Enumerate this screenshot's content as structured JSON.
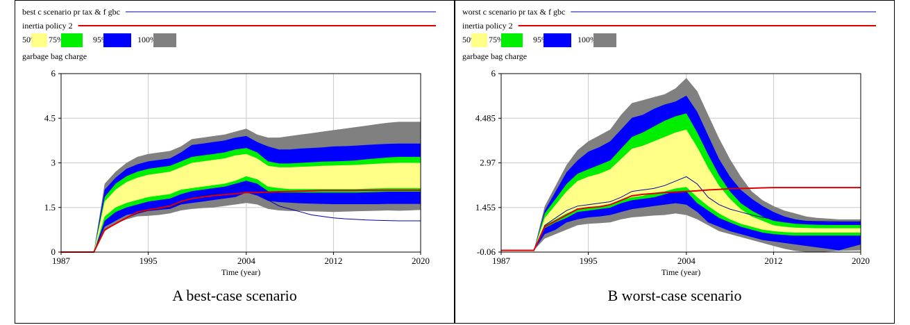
{
  "panels": [
    {
      "caption": "A best-case scenario",
      "legend": {
        "line1": "best c scenario pr tax & f gbc",
        "line2": "inertia policy 2",
        "bands": [
          "50%",
          "75%",
          "95%",
          "100%"
        ]
      },
      "variable": "garbage bag charge",
      "xlabel": "Time (year)"
    },
    {
      "caption": "B worst-case scenario",
      "legend": {
        "line1": "worst c scenario pr tax & f gbc",
        "line2": "inertia policy 2",
        "bands": [
          "50%",
          "75%",
          "95%",
          "100%"
        ]
      },
      "variable": "garbage bag charge",
      "xlabel": "Time (year)"
    }
  ],
  "colors": {
    "band50": "#ffff88",
    "band75": "#00ee00",
    "band95": "#0000ff",
    "band100": "#808080",
    "scenario": "#0000aa",
    "policy": "#dd0000",
    "grid": "#c8c8c8"
  },
  "chart_data": [
    {
      "type": "area",
      "title": "garbage bag charge",
      "xlabel": "Time (year)",
      "ylabel": "",
      "xlim": [
        1987,
        2020
      ],
      "ylim": [
        0,
        6
      ],
      "xticks": [
        "1987",
        "1995",
        "2004",
        "2012",
        "2020"
      ],
      "yticks": [
        "0",
        "1.5",
        "3",
        "4.5",
        "6"
      ],
      "grid": true,
      "legend_position": "top",
      "x": [
        1987,
        1990,
        1991,
        1992,
        1993,
        1994,
        1995,
        1996,
        1997,
        1998,
        1999,
        2000,
        2001,
        2002,
        2003,
        2004,
        2005,
        2006,
        2007,
        2008,
        2009,
        2010,
        2011,
        2012,
        2013,
        2014,
        2015,
        2016,
        2017,
        2018,
        2019,
        2020
      ],
      "bands": [
        {
          "name": "100%",
          "lower": [
            0,
            0,
            0.7,
            0.95,
            1.1,
            1.2,
            1.22,
            1.25,
            1.3,
            1.4,
            1.45,
            1.48,
            1.5,
            1.55,
            1.6,
            1.65,
            1.6,
            1.45,
            1.4,
            1.38,
            1.38,
            1.37,
            1.36,
            1.35,
            1.36,
            1.37,
            1.38,
            1.39,
            1.4,
            1.39,
            1.4,
            1.42
          ],
          "upper": [
            0,
            0,
            2.3,
            2.7,
            3.0,
            3.2,
            3.3,
            3.35,
            3.4,
            3.55,
            3.8,
            3.85,
            3.9,
            3.95,
            4.05,
            4.15,
            3.95,
            3.85,
            3.85,
            3.9,
            3.95,
            4.0,
            4.05,
            4.1,
            4.15,
            4.2,
            4.25,
            4.3,
            4.35,
            4.38,
            4.38,
            4.38
          ]
        },
        {
          "name": "95%",
          "lower": [
            0,
            0,
            0.85,
            1.05,
            1.25,
            1.32,
            1.38,
            1.42,
            1.45,
            1.6,
            1.65,
            1.7,
            1.75,
            1.8,
            1.85,
            2.0,
            1.9,
            1.72,
            1.68,
            1.66,
            1.64,
            1.63,
            1.62,
            1.61,
            1.61,
            1.61,
            1.61,
            1.61,
            1.62,
            1.62,
            1.62,
            1.62
          ],
          "upper": [
            0,
            0,
            2.1,
            2.5,
            2.8,
            2.95,
            3.05,
            3.1,
            3.15,
            3.35,
            3.6,
            3.65,
            3.7,
            3.75,
            3.85,
            3.9,
            3.7,
            3.55,
            3.45,
            3.45,
            3.48,
            3.5,
            3.52,
            3.55,
            3.56,
            3.58,
            3.6,
            3.62,
            3.64,
            3.65,
            3.65,
            3.65
          ]
        },
        {
          "name": "75%",
          "lower": [
            0,
            0,
            1.05,
            1.35,
            1.5,
            1.6,
            1.7,
            1.75,
            1.8,
            1.95,
            2.05,
            2.1,
            2.15,
            2.2,
            2.3,
            2.4,
            2.3,
            2.05,
            2.0,
            2.0,
            2.0,
            2.0,
            2.0,
            2.0,
            2.0,
            2.0,
            2.01,
            2.02,
            2.03,
            2.03,
            2.03,
            2.03
          ],
          "upper": [
            0,
            0,
            1.85,
            2.3,
            2.55,
            2.7,
            2.8,
            2.85,
            2.9,
            3.05,
            3.2,
            3.25,
            3.3,
            3.35,
            3.45,
            3.5,
            3.35,
            3.05,
            2.98,
            2.98,
            3.0,
            3.02,
            3.04,
            3.05,
            3.06,
            3.08,
            3.12,
            3.15,
            3.18,
            3.2,
            3.2,
            3.2
          ]
        },
        {
          "name": "50%",
          "lower": [
            0,
            0,
            1.2,
            1.5,
            1.65,
            1.75,
            1.85,
            1.9,
            1.95,
            2.1,
            2.15,
            2.2,
            2.25,
            2.3,
            2.4,
            2.55,
            2.45,
            2.2,
            2.15,
            2.12,
            2.12,
            2.12,
            2.12,
            2.12,
            2.12,
            2.12,
            2.13,
            2.14,
            2.15,
            2.15,
            2.15,
            2.15
          ],
          "upper": [
            0,
            0,
            1.7,
            2.1,
            2.35,
            2.5,
            2.6,
            2.65,
            2.7,
            2.85,
            3.0,
            3.05,
            3.1,
            3.15,
            3.25,
            3.3,
            3.15,
            2.9,
            2.85,
            2.85,
            2.87,
            2.88,
            2.9,
            2.91,
            2.92,
            2.93,
            2.95,
            2.97,
            2.99,
            3.0,
            3.0,
            3.0
          ]
        }
      ],
      "series": [
        {
          "name": "best c scenario pr tax & f gbc",
          "values": [
            0,
            0,
            0.75,
            0.95,
            1.15,
            1.3,
            1.4,
            1.45,
            1.5,
            1.65,
            1.8,
            1.9,
            1.95,
            2.05,
            2.2,
            2.3,
            2.1,
            1.75,
            1.55,
            1.45,
            1.35,
            1.25,
            1.2,
            1.15,
            1.12,
            1.1,
            1.08,
            1.07,
            1.06,
            1.05,
            1.05,
            1.05
          ]
        },
        {
          "name": "inertia policy 2",
          "values": [
            0,
            0,
            0.75,
            0.95,
            1.15,
            1.35,
            1.42,
            1.48,
            1.55,
            1.7,
            1.8,
            1.85,
            1.9,
            1.93,
            1.96,
            2.0,
            2.0,
            2.02,
            2.03,
            2.04,
            2.05,
            2.06,
            2.07,
            2.07,
            2.07,
            2.07,
            2.08,
            2.08,
            2.08,
            2.08,
            2.08,
            2.08
          ]
        }
      ]
    },
    {
      "type": "area",
      "title": "garbage bag charge",
      "xlabel": "Time (year)",
      "ylabel": "",
      "xlim": [
        1987,
        2020
      ],
      "ylim": [
        -0.06,
        6
      ],
      "xticks": [
        "1987",
        "1995",
        "2004",
        "2012",
        "2020"
      ],
      "yticks": [
        "-0.06",
        "1.455",
        "2.97",
        "4.485",
        "6"
      ],
      "grid": true,
      "legend_position": "top",
      "x": [
        1987,
        1990,
        1991,
        1992,
        1993,
        1994,
        1995,
        1996,
        1997,
        1998,
        1999,
        2000,
        2001,
        2002,
        2003,
        2004,
        2005,
        2006,
        2007,
        2008,
        2009,
        2010,
        2011,
        2012,
        2013,
        2014,
        2015,
        2016,
        2017,
        2018,
        2019,
        2020
      ],
      "bands": [
        {
          "name": "100%",
          "lower": [
            0,
            0,
            0.4,
            0.55,
            0.7,
            0.85,
            0.9,
            0.92,
            0.95,
            1.05,
            1.12,
            1.15,
            1.18,
            1.2,
            1.25,
            1.2,
            1.05,
            0.85,
            0.65,
            0.55,
            0.45,
            0.35,
            0.25,
            0.15,
            0.05,
            -0.02,
            -0.05,
            -0.06,
            -0.04,
            -0.02,
            -0.01,
            0.0
          ],
          "upper": [
            0,
            0,
            1.5,
            2.2,
            2.9,
            3.4,
            3.7,
            3.9,
            4.1,
            4.6,
            5.0,
            5.1,
            5.2,
            5.3,
            5.5,
            5.85,
            5.4,
            4.6,
            3.8,
            3.1,
            2.5,
            2.0,
            1.7,
            1.5,
            1.35,
            1.25,
            1.15,
            1.1,
            1.08,
            1.05,
            1.05,
            1.05
          ]
        },
        {
          "name": "95%",
          "lower": [
            0,
            0,
            0.55,
            0.7,
            0.95,
            1.05,
            1.12,
            1.15,
            1.2,
            1.3,
            1.4,
            1.45,
            1.5,
            1.55,
            1.6,
            1.55,
            1.3,
            0.95,
            0.8,
            0.65,
            0.55,
            0.45,
            0.35,
            0.3,
            0.25,
            0.2,
            0.15,
            0.1,
            0.05,
            0.0,
            0.1,
            0.2
          ],
          "upper": [
            0,
            0,
            1.35,
            2.0,
            2.65,
            3.05,
            3.35,
            3.5,
            3.7,
            4.1,
            4.5,
            4.6,
            4.8,
            4.95,
            5.05,
            5.25,
            4.7,
            3.9,
            3.1,
            2.5,
            2.05,
            1.75,
            1.5,
            1.3,
            1.15,
            1.05,
            1.0,
            0.97,
            0.96,
            0.96,
            0.96,
            0.96
          ]
        },
        {
          "name": "75%",
          "lower": [
            0,
            0,
            0.75,
            0.95,
            1.1,
            1.3,
            1.35,
            1.4,
            1.45,
            1.6,
            1.7,
            1.75,
            1.8,
            1.9,
            2.0,
            2.0,
            1.6,
            1.35,
            1.1,
            0.95,
            0.8,
            0.7,
            0.6,
            0.55,
            0.52,
            0.5,
            0.5,
            0.5,
            0.5,
            0.5,
            0.5,
            0.5
          ],
          "upper": [
            0,
            0,
            1.25,
            1.75,
            2.25,
            2.6,
            2.75,
            2.9,
            3.05,
            3.45,
            3.85,
            4.0,
            4.2,
            4.4,
            4.55,
            4.65,
            4.0,
            3.25,
            2.55,
            2.0,
            1.6,
            1.35,
            1.15,
            1.0,
            0.95,
            0.9,
            0.88,
            0.87,
            0.86,
            0.86,
            0.86,
            0.86
          ]
        },
        {
          "name": "50%",
          "lower": [
            0,
            0,
            0.85,
            1.05,
            1.25,
            1.4,
            1.45,
            1.5,
            1.55,
            1.7,
            1.8,
            1.85,
            1.95,
            2.0,
            2.1,
            2.15,
            1.8,
            1.5,
            1.25,
            1.05,
            0.9,
            0.8,
            0.7,
            0.65,
            0.62,
            0.6,
            0.6,
            0.6,
            0.6,
            0.6,
            0.6,
            0.6
          ],
          "upper": [
            0,
            0,
            1.1,
            1.55,
            2.0,
            2.35,
            2.5,
            2.6,
            2.75,
            3.1,
            3.45,
            3.55,
            3.7,
            3.85,
            4.0,
            4.1,
            3.5,
            2.8,
            2.2,
            1.75,
            1.4,
            1.15,
            1.0,
            0.85,
            0.8,
            0.77,
            0.76,
            0.75,
            0.75,
            0.75,
            0.75,
            0.75
          ]
        }
      ],
      "series": [
        {
          "name": "worst c scenario pr tax & f gbc",
          "values": [
            0,
            0,
            0.85,
            1.1,
            1.35,
            1.5,
            1.55,
            1.6,
            1.65,
            1.8,
            2.0,
            2.05,
            2.1,
            2.2,
            2.35,
            2.5,
            2.25,
            1.8,
            1.55,
            1.4,
            1.3,
            1.2,
            1.12,
            1.05,
            1.02,
            1.0,
            0.99,
            0.98,
            0.98,
            0.97,
            0.97,
            0.97
          ]
        },
        {
          "name": "inertia policy 2",
          "values": [
            0,
            0,
            0.8,
            1.0,
            1.2,
            1.4,
            1.45,
            1.48,
            1.55,
            1.7,
            1.85,
            1.9,
            1.93,
            1.96,
            1.98,
            2.0,
            2.02,
            2.05,
            2.07,
            2.09,
            2.1,
            2.11,
            2.12,
            2.13,
            2.13,
            2.13,
            2.13,
            2.13,
            2.13,
            2.13,
            2.13,
            2.13
          ]
        }
      ]
    }
  ]
}
